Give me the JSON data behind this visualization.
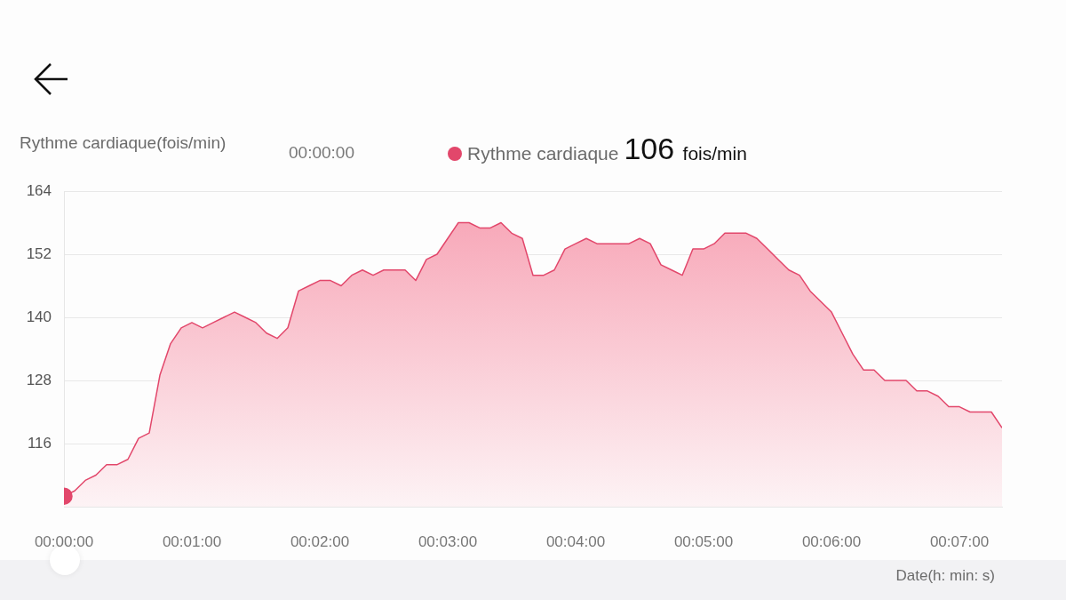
{
  "chart_data": {
    "type": "area",
    "ylabel": "Rythme cardiaque(fois/min)",
    "xlabel": "Date(h: min: s)",
    "annotations": [
      "00:00:00",
      "106 fois/min"
    ],
    "x": [
      0,
      5,
      10,
      15,
      20,
      25,
      30,
      35,
      40,
      45,
      50,
      55,
      60,
      65,
      70,
      75,
      80,
      85,
      90,
      95,
      100,
      105,
      110,
      115,
      120,
      125,
      130,
      135,
      140,
      145,
      150,
      155,
      160,
      165,
      170,
      175,
      180,
      185,
      190,
      195,
      200,
      205,
      210,
      215,
      220,
      225,
      230,
      235,
      240,
      245,
      250,
      255,
      260,
      265,
      270,
      275,
      280,
      285,
      290,
      295,
      300,
      305,
      310,
      315,
      320,
      325,
      330,
      335,
      340,
      345,
      350,
      355,
      360,
      365,
      370,
      375,
      380,
      385,
      390,
      395,
      400,
      405,
      410,
      415,
      420,
      425,
      430,
      435,
      440
    ],
    "series": [
      {
        "name": "Rythme cardiaque",
        "color": "#e2476b",
        "values": [
          106,
          107,
          109,
          110,
          112,
          112,
          113,
          117,
          118,
          129,
          135,
          138,
          139,
          138,
          139,
          140,
          141,
          140,
          139,
          137,
          136,
          138,
          145,
          146,
          147,
          147,
          146,
          148,
          149,
          148,
          149,
          149,
          149,
          147,
          151,
          152,
          155,
          158,
          158,
          157,
          157,
          158,
          156,
          155,
          148,
          148,
          149,
          153,
          154,
          155,
          154,
          154,
          154,
          154,
          155,
          154,
          150,
          149,
          148,
          153,
          153,
          154,
          156,
          156,
          156,
          155,
          153,
          151,
          149,
          148,
          145,
          143,
          141,
          137,
          133,
          130,
          130,
          128,
          128,
          128,
          126,
          126,
          125,
          123,
          123,
          122,
          122,
          122,
          119
        ]
      }
    ],
    "xlim": [
      0,
      440
    ],
    "xticks": [
      {
        "value": 0,
        "label": "00:00:00"
      },
      {
        "value": 60,
        "label": "00:01:00"
      },
      {
        "value": 120,
        "label": "00:02:00"
      },
      {
        "value": 180,
        "label": "00:03:00"
      },
      {
        "value": 240,
        "label": "00:04:00"
      },
      {
        "value": 300,
        "label": "00:05:00"
      },
      {
        "value": 360,
        "label": "00:06:00"
      },
      {
        "value": 420,
        "label": "00:07:00"
      }
    ],
    "ylim": [
      104,
      164
    ],
    "yticks": [
      {
        "value": 104,
        "label": null
      },
      116,
      128,
      140,
      152,
      164
    ],
    "grid": "y",
    "legend": "top",
    "marker": "none"
  }
}
